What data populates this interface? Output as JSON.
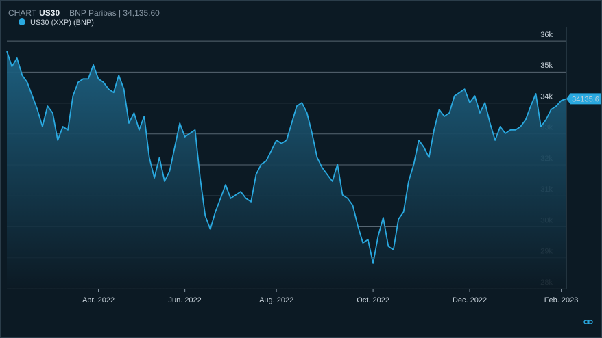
{
  "header": {
    "label": "CHART",
    "symbol": "US30",
    "quote": "BNP Paribas | 34,135.60"
  },
  "chart_data": {
    "type": "area",
    "categories": [
      null,
      null,
      null,
      null,
      null,
      null,
      null,
      null,
      null,
      null,
      null,
      null,
      null,
      null,
      null,
      null,
      null,
      null,
      "Apr. 2022",
      null,
      null,
      null,
      null,
      null,
      null,
      null,
      null,
      null,
      null,
      null,
      null,
      null,
      null,
      null,
      null,
      "Jun. 2022",
      null,
      null,
      null,
      null,
      null,
      null,
      null,
      null,
      null,
      null,
      null,
      null,
      null,
      null,
      null,
      null,
      null,
      "Aug. 2022",
      null,
      null,
      null,
      null,
      null,
      null,
      null,
      null,
      null,
      null,
      null,
      null,
      null,
      null,
      null,
      null,
      null,
      null,
      "Oct. 2022",
      null,
      null,
      null,
      null,
      null,
      null,
      null,
      null,
      null,
      null,
      null,
      null,
      null,
      null,
      null,
      null,
      null,
      null,
      "Dec. 2022",
      null,
      null,
      null,
      null,
      null,
      null,
      null,
      null,
      null,
      null,
      null,
      null,
      null,
      null,
      null,
      null,
      null,
      "Feb. 2023",
      null
    ],
    "series": [
      {
        "name": "US30 (XXP) (BNP)",
        "color": "#2aa9e0",
        "values": [
          35670,
          35180,
          35450,
          34900,
          34670,
          34230,
          33790,
          33240,
          33900,
          33680,
          32800,
          33240,
          33130,
          34230,
          34670,
          34780,
          34780,
          35230,
          34780,
          34670,
          34450,
          34340,
          34900,
          34450,
          33350,
          33680,
          33130,
          33570,
          32240,
          31580,
          32240,
          31470,
          31800,
          32570,
          33350,
          32910,
          33020,
          33130,
          31580,
          30360,
          29920,
          30480,
          30920,
          31360,
          30920,
          31030,
          31140,
          30920,
          30810,
          31690,
          32020,
          32130,
          32460,
          32800,
          32690,
          32800,
          33350,
          33900,
          34010,
          33680,
          33020,
          32240,
          31910,
          31690,
          31470,
          32020,
          31030,
          30920,
          30700,
          30030,
          29480,
          29590,
          28820,
          29700,
          30300,
          29370,
          29260,
          30250,
          30480,
          31470,
          32020,
          32800,
          32570,
          32240,
          33130,
          33790,
          33570,
          33680,
          34230,
          34340,
          34450,
          34010,
          34230,
          33680,
          34010,
          33350,
          32800,
          33240,
          33020,
          33130,
          33130,
          33240,
          33460,
          33900,
          34300,
          33240,
          33460,
          33790,
          33900,
          34080,
          34135.6
        ]
      }
    ],
    "ylim": [
      28000,
      36400
    ],
    "yticks": [
      {
        "value": 28000,
        "label": "28k"
      },
      {
        "value": 29000,
        "label": "29k"
      },
      {
        "value": 30000,
        "label": "30k"
      },
      {
        "value": 31000,
        "label": "31k"
      },
      {
        "value": 32000,
        "label": "32k"
      },
      {
        "value": 33000,
        "label": "33k"
      },
      {
        "value": 34000,
        "label": "34k"
      },
      {
        "value": 35000,
        "label": "35k"
      },
      {
        "value": 36000,
        "label": "36k"
      }
    ],
    "grid": true
  }
}
